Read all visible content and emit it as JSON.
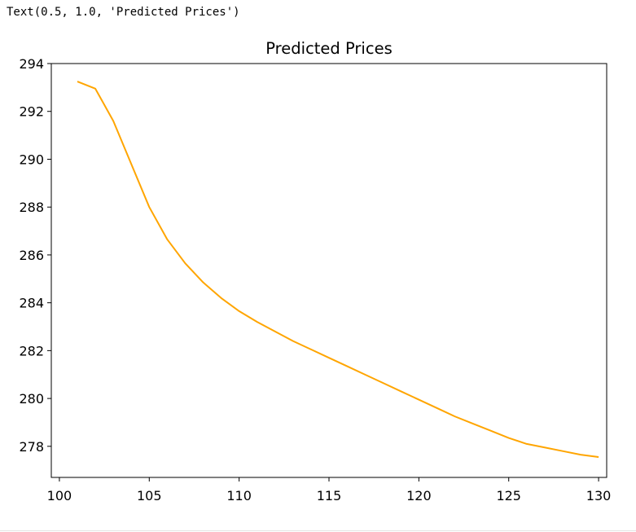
{
  "cell_output": {
    "text": "Text(0.5, 1.0, 'Predicted Prices')"
  },
  "chart_data": {
    "type": "line",
    "title": "Predicted Prices",
    "xlabel": "",
    "ylabel": "",
    "xlim": [
      99.55,
      130.45
    ],
    "ylim": [
      276.7,
      294.0
    ],
    "xticks": [
      100,
      105,
      110,
      115,
      120,
      125,
      130
    ],
    "yticks": [
      278,
      280,
      282,
      284,
      286,
      288,
      290,
      292,
      294
    ],
    "grid": false,
    "line_color": "#ffa500",
    "series": [
      {
        "x": [
          101,
          102,
          103,
          104,
          105,
          106,
          107,
          108,
          109,
          110,
          111,
          112,
          113,
          114,
          115,
          116,
          117,
          118,
          119,
          120,
          121,
          122,
          123,
          124,
          125,
          126,
          127,
          128,
          129,
          130
        ],
        "y": [
          293.25,
          292.95,
          291.6,
          289.8,
          288.0,
          286.65,
          285.65,
          284.85,
          284.2,
          283.65,
          283.2,
          282.8,
          282.4,
          282.05,
          281.7,
          281.35,
          281.0,
          280.65,
          280.3,
          279.95,
          279.6,
          279.25,
          278.95,
          278.65,
          278.35,
          278.1,
          277.95,
          277.8,
          277.65,
          277.55
        ]
      }
    ]
  }
}
